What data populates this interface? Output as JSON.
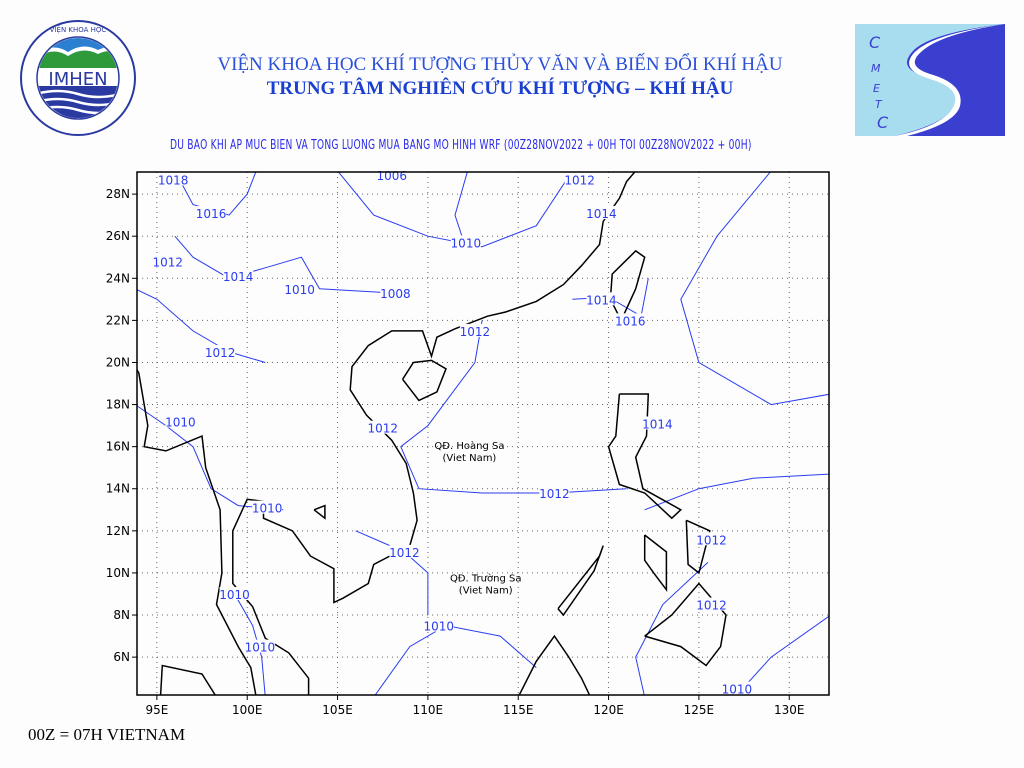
{
  "header": {
    "institute": "VIỆN KHOA HỌC KHÍ TƯỢNG THỦY VĂN VÀ BIẾN ĐỔI KHÍ HẬU",
    "center": "TRUNG TÂM NGHIÊN CỨU KHÍ TƯỢNG – KHÍ HẬU",
    "subtitle": "DU BAO KHI AP MUC BIEN VA TONG LUONG MUA BANG MO HINH WRF (00Z28NOV2022 + 00H TOI 00Z28NOV2022 + 00H)"
  },
  "logos": {
    "left": {
      "text": "IMHEN",
      "ring_text": "VIỆN KHOA HỌC KHÍ TƯỢNG THỦY VĂN VÀ BIẾN ĐỔI KHÍ HẬU"
    },
    "right": {
      "text": "CMETC"
    }
  },
  "map": {
    "lon_range": [
      93.9,
      132.2
    ],
    "lat_range": [
      4.2,
      29.05
    ],
    "x_ticks": [
      "95E",
      "100E",
      "105E",
      "110E",
      "115E",
      "120E",
      "125E",
      "130E"
    ],
    "y_ticks": [
      "6N",
      "8N",
      "10N",
      "12N",
      "14N",
      "16N",
      "18N",
      "20N",
      "22N",
      "24N",
      "26N",
      "28N"
    ],
    "grid": "dotted",
    "colors": {
      "contour": "#2a3cf0",
      "coast": "#000000",
      "label": "#2a3cf0"
    },
    "contour_labels": [
      {
        "text": "1018",
        "lon": 95.9,
        "lat": 28.7
      },
      {
        "text": "1016",
        "lon": 98.0,
        "lat": 27.1
      },
      {
        "text": "1012",
        "lon": 95.6,
        "lat": 24.8
      },
      {
        "text": "1014",
        "lon": 99.5,
        "lat": 24.1
      },
      {
        "text": "1010",
        "lon": 102.9,
        "lat": 23.5
      },
      {
        "text": "1008",
        "lon": 108.2,
        "lat": 23.3
      },
      {
        "text": "1006",
        "lon": 108.0,
        "lat": 28.9
      },
      {
        "text": "1012",
        "lon": 118.4,
        "lat": 28.7
      },
      {
        "text": "1014",
        "lon": 119.6,
        "lat": 27.1
      },
      {
        "text": "1010",
        "lon": 112.1,
        "lat": 25.7
      },
      {
        "text": "1012",
        "lon": 112.6,
        "lat": 21.5
      },
      {
        "text": "1014",
        "lon": 119.6,
        "lat": 23.0
      },
      {
        "text": "1016",
        "lon": 121.2,
        "lat": 22.0
      },
      {
        "text": "1012",
        "lon": 98.5,
        "lat": 20.5
      },
      {
        "text": "1010",
        "lon": 96.3,
        "lat": 17.2
      },
      {
        "text": "1012",
        "lon": 107.5,
        "lat": 16.9
      },
      {
        "text": "1014",
        "lon": 122.7,
        "lat": 17.1
      },
      {
        "text": "1012",
        "lon": 117.0,
        "lat": 13.8
      },
      {
        "text": "1010",
        "lon": 101.1,
        "lat": 13.1
      },
      {
        "text": "1012",
        "lon": 108.7,
        "lat": 11.0
      },
      {
        "text": "1012",
        "lon": 125.7,
        "lat": 11.6
      },
      {
        "text": "1010",
        "lon": 99.3,
        "lat": 9.0
      },
      {
        "text": "1010",
        "lon": 110.6,
        "lat": 7.5
      },
      {
        "text": "1012",
        "lon": 125.7,
        "lat": 8.5
      },
      {
        "text": "1010",
        "lon": 100.7,
        "lat": 6.5
      },
      {
        "text": "1010",
        "lon": 127.1,
        "lat": 4.5
      }
    ],
    "place_labels": [
      {
        "line1": "QĐ. Hoàng Sa",
        "line2": "(Viet Nam)",
        "lon": 112.3,
        "lat": 15.9
      },
      {
        "line1": "QĐ. Trường Sa",
        "line2": "(Viet Nam)",
        "lon": 113.2,
        "lat": 9.6
      }
    ]
  },
  "footer": "00Z = 07H VIETNAM"
}
